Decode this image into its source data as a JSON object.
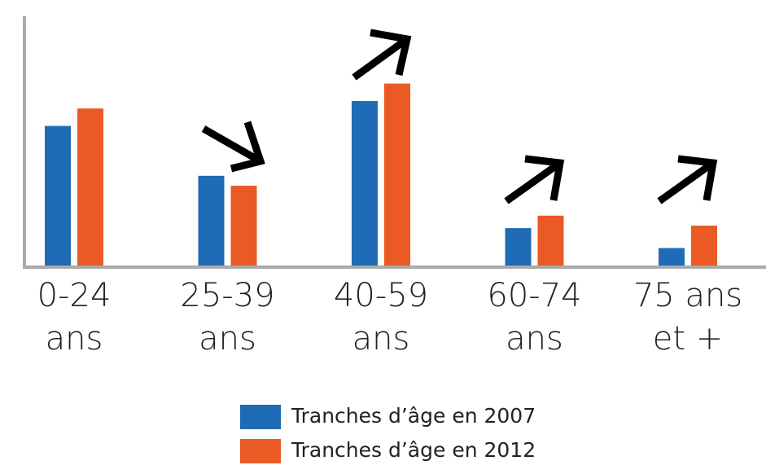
{
  "chart_data": {
    "type": "bar",
    "categories": [
      [
        "0-24",
        "ans"
      ],
      [
        "25-39",
        "ans"
      ],
      [
        "40-59",
        "ans"
      ],
      [
        "60-74",
        "ans"
      ],
      [
        "75 ans",
        "et +"
      ]
    ],
    "series": [
      {
        "name": "Tranches d’âge en 2007",
        "color": "#1f6bb5",
        "values": [
          56,
          36,
          66,
          15,
          7
        ]
      },
      {
        "name": "Tranches d’âge en 2012",
        "color": "#e95a24",
        "values": [
          63,
          32,
          73,
          20,
          16
        ]
      }
    ],
    "ylim": [
      0,
      100
    ]
  }
}
